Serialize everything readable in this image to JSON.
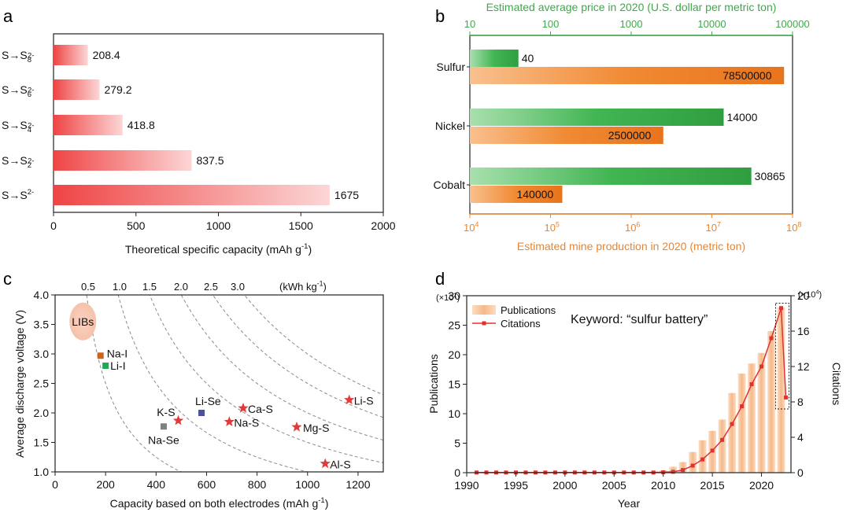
{
  "panels": {
    "a": {
      "letter": "a"
    },
    "b": {
      "letter": "b"
    },
    "c": {
      "letter": "c"
    },
    "d": {
      "letter": "d"
    }
  },
  "colors": {
    "red_dark": "#ef4a4a",
    "red_light": "#fbd3d3",
    "green": "#3fb14f",
    "green_light": "#8ed696",
    "orange": "#f0802b",
    "orange_light": "#f8b57a",
    "peach": "#f8c9a3",
    "citation_red": "#e0322e",
    "axis_green": "#3ea84a",
    "axis_orange": "#e8852f"
  },
  "chart_data": [
    {
      "id": "a",
      "type": "bar",
      "orientation": "horizontal",
      "categories": [
        {
          "base": "S→S",
          "sub": "8",
          "sup": "2-"
        },
        {
          "base": "S→S",
          "sub": "6",
          "sup": "2-"
        },
        {
          "base": "S→S",
          "sub": "4",
          "sup": "2-"
        },
        {
          "base": "S→S",
          "sub": "2",
          "sup": "2-"
        },
        {
          "base": "S→S",
          "sub": "",
          "sup": "2-"
        }
      ],
      "values": [
        208.4,
        279.2,
        418.8,
        837.5,
        1675
      ],
      "value_labels": [
        "208.4",
        "279.2",
        "418.8",
        "837.5",
        "1675"
      ],
      "xlim": [
        0,
        2000
      ],
      "xticks": [
        "0",
        "500",
        "1000",
        "1500",
        "2000"
      ],
      "xlabel": "Theoretical specific capacity (mAh g",
      "xlabel_sup": "-1",
      "xlabel_end": ")"
    },
    {
      "id": "b",
      "type": "bar",
      "orientation": "horizontal",
      "scale": "log",
      "categories": [
        "Sulfur",
        "Nickel",
        "Cobalt"
      ],
      "series": [
        {
          "name": "Estimated average price in 2020",
          "axis": "top",
          "values": [
            40,
            14000,
            30865
          ],
          "labels": [
            "40",
            "14000",
            "30865"
          ]
        },
        {
          "name": "Estimated mine production in 2020",
          "axis": "bottom",
          "values": [
            78500000,
            2500000,
            140000
          ],
          "labels": [
            "78500000",
            "2500000",
            "140000"
          ]
        }
      ],
      "top_axis": {
        "label": "Estimated average price in 2020 (U.S. dollar per metric ton)",
        "range": [
          10,
          100000
        ],
        "ticks": [
          "10",
          "100",
          "1000",
          "10000",
          "100000"
        ]
      },
      "bottom_axis": {
        "label": "Estimated mine production in 2020 (metric ton)",
        "range": [
          10000,
          100000000
        ],
        "ticks": [
          {
            "base": "10",
            "exp": "4"
          },
          {
            "base": "10",
            "exp": "5"
          },
          {
            "base": "10",
            "exp": "6"
          },
          {
            "base": "10",
            "exp": "7"
          },
          {
            "base": "10",
            "exp": "8"
          }
        ]
      }
    },
    {
      "id": "c",
      "type": "scatter",
      "xlim": [
        0,
        1300
      ],
      "ylim": [
        1.0,
        4.0
      ],
      "xticks": [
        "0",
        "200",
        "400",
        "600",
        "800",
        "1000",
        "1200"
      ],
      "yticks": [
        "1.0",
        "1.5",
        "2.0",
        "2.5",
        "3.0",
        "3.5",
        "4.0"
      ],
      "xlabel": "Capacity based on both electrodes (mAh g",
      "xlabel_sup": "-1",
      "xlabel_end": ")",
      "ylabel": "Average discharge voltage (V)",
      "energy_curves": [
        {
          "label": "0.5",
          "energy": 0.5
        },
        {
          "label": "1.0",
          "energy": 1.0
        },
        {
          "label": "1.5",
          "energy": 1.5
        },
        {
          "label": "2.0",
          "energy": 2.0
        },
        {
          "label": "2.5",
          "energy": 2.5
        },
        {
          "label": "3.0",
          "energy": 3.0
        }
      ],
      "energy_unit": "(kWh kg",
      "energy_unit_sup": "-1",
      "energy_unit_end": ")",
      "lib_region": {
        "label": "LIBs",
        "x": 110,
        "y": 3.55
      },
      "points": [
        {
          "label": "Na-I",
          "x": 180,
          "y": 2.97,
          "marker": "square",
          "color": "#c8651f"
        },
        {
          "label": "Li-I",
          "x": 200,
          "y": 2.8,
          "marker": "square",
          "color": "#22a852"
        },
        {
          "label": "Na-Se",
          "x": 430,
          "y": 1.77,
          "marker": "square",
          "color": "#808080"
        },
        {
          "label": "K-S",
          "x": 488,
          "y": 1.87,
          "marker": "star",
          "color": "#e23a3a"
        },
        {
          "label": "Li-Se",
          "x": 580,
          "y": 2.0,
          "marker": "square",
          "color": "#4a4fa0"
        },
        {
          "label": "Ca-S",
          "x": 745,
          "y": 2.08,
          "marker": "star",
          "color": "#e23a3a"
        },
        {
          "label": "Na-S",
          "x": 690,
          "y": 1.85,
          "marker": "star",
          "color": "#e23a3a"
        },
        {
          "label": "Mg-S",
          "x": 957,
          "y": 1.76,
          "marker": "star",
          "color": "#e23a3a"
        },
        {
          "label": "Li-S",
          "x": 1165,
          "y": 2.22,
          "marker": "star",
          "color": "#e23a3a"
        },
        {
          "label": "Al-S",
          "x": 1070,
          "y": 1.14,
          "marker": "star",
          "color": "#e23a3a"
        }
      ]
    },
    {
      "id": "d",
      "type": "bar",
      "combo": "bar+line",
      "x": [
        1991,
        1992,
        1993,
        1994,
        1995,
        1996,
        1997,
        1998,
        1999,
        2000,
        2001,
        2002,
        2003,
        2004,
        2005,
        2006,
        2007,
        2008,
        2009,
        2010,
        2011,
        2012,
        2013,
        2014,
        2015,
        2016,
        2017,
        2018,
        2019,
        2020,
        2021,
        2022
      ],
      "series": [
        {
          "name": "Publications",
          "axis": "left",
          "unit_multiplier": "×10²",
          "values": [
            0.1,
            0.1,
            0.1,
            0.1,
            0.1,
            0.1,
            0.1,
            0.1,
            0.1,
            0.1,
            0.1,
            0.1,
            0.1,
            0.1,
            0.1,
            0.1,
            0.1,
            0.1,
            0.2,
            0.4,
            1.0,
            1.8,
            3.5,
            5.5,
            7.1,
            9.0,
            13.5,
            16.8,
            18.5,
            20.3,
            24.0,
            28.0
          ]
        },
        {
          "name": "Citations",
          "axis": "right",
          "unit_multiplier": "×10⁴",
          "values": [
            0.02,
            0.02,
            0.02,
            0.02,
            0.02,
            0.02,
            0.02,
            0.02,
            0.02,
            0.02,
            0.02,
            0.02,
            0.02,
            0.02,
            0.02,
            0.02,
            0.02,
            0.02,
            0.02,
            0.05,
            0.1,
            0.3,
            0.8,
            1.5,
            2.5,
            3.7,
            5.5,
            7.5,
            10.0,
            12.0,
            15.2,
            18.6
          ]
        }
      ],
      "citation_drop": 8.5,
      "xlim": [
        1990,
        2023
      ],
      "xticks": [
        "1990",
        "1995",
        "2000",
        "2005",
        "2010",
        "2015",
        "2020"
      ],
      "yleft": {
        "label": "Publications",
        "range": [
          0,
          30
        ],
        "ticks": [
          "0",
          "5",
          "10",
          "15",
          "20",
          "25",
          "30"
        ],
        "multiplier": "(×10",
        "multiplier_sup": "2",
        "multiplier_end": ")"
      },
      "yright": {
        "label": "Citations",
        "range": [
          0,
          20
        ],
        "ticks": [
          "0",
          "4",
          "8",
          "12",
          "16",
          "20"
        ],
        "multiplier": "(×10",
        "multiplier_sup": "4",
        "multiplier_end": ")"
      },
      "xlabel": "Year",
      "annotation": "Keyword: “sulfur battery”",
      "legend": [
        "Publications",
        "Citations"
      ]
    }
  ]
}
